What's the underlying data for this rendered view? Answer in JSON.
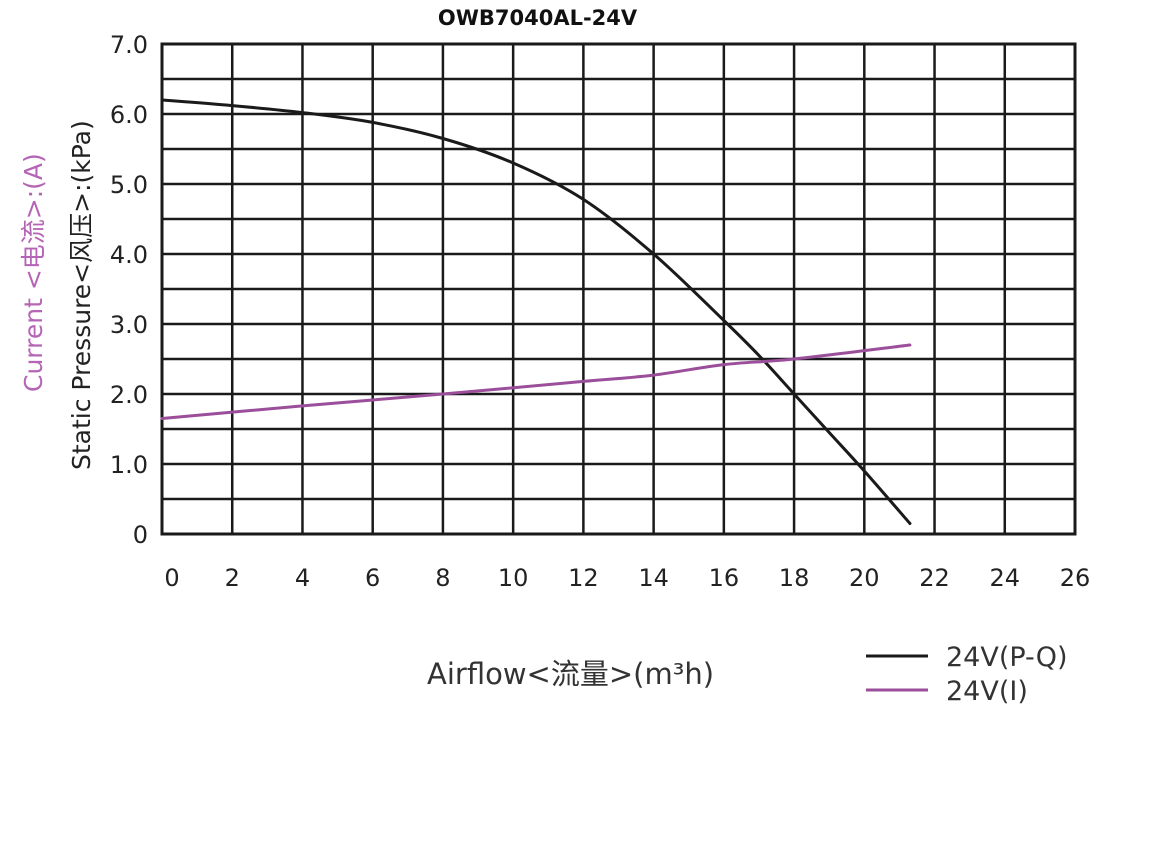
{
  "chart_data": {
    "type": "line",
    "title": "OWB7040AL-24V",
    "xlabel": "Airflow<流量>(m³h)",
    "ylabel": "Static Pressure<风压>:(kPa)",
    "ylabel_secondary": "Current <电流>:(A)",
    "xlim": [
      0,
      26
    ],
    "ylim": [
      0,
      7
    ],
    "x_ticks": [
      "0",
      "2",
      "4",
      "6",
      "8",
      "10",
      "12",
      "14",
      "16",
      "18",
      "20",
      "22",
      "24",
      "26"
    ],
    "y_ticks": [
      "0",
      "1.0",
      "2.0",
      "3.0",
      "4.0",
      "5.0",
      "6.0",
      "7.0"
    ],
    "grid": true,
    "legend_position": "bottom-right",
    "series": [
      {
        "name": "24V(P-Q)",
        "color": "#1a1a1a",
        "x": [
          0,
          2,
          4,
          6,
          8,
          10,
          12,
          14,
          16,
          17,
          18,
          19,
          20,
          21.3
        ],
        "y": [
          6.2,
          6.12,
          6.02,
          5.88,
          5.65,
          5.3,
          4.78,
          4.0,
          3.05,
          2.55,
          2.0,
          1.45,
          0.9,
          0.15
        ]
      },
      {
        "name": "24V(I)",
        "color": "#9b4f9b",
        "x": [
          0,
          4,
          8,
          12,
          14,
          16,
          18,
          21.3
        ],
        "y": [
          1.65,
          1.83,
          2.0,
          2.18,
          2.27,
          2.42,
          2.5,
          2.7
        ]
      }
    ]
  }
}
